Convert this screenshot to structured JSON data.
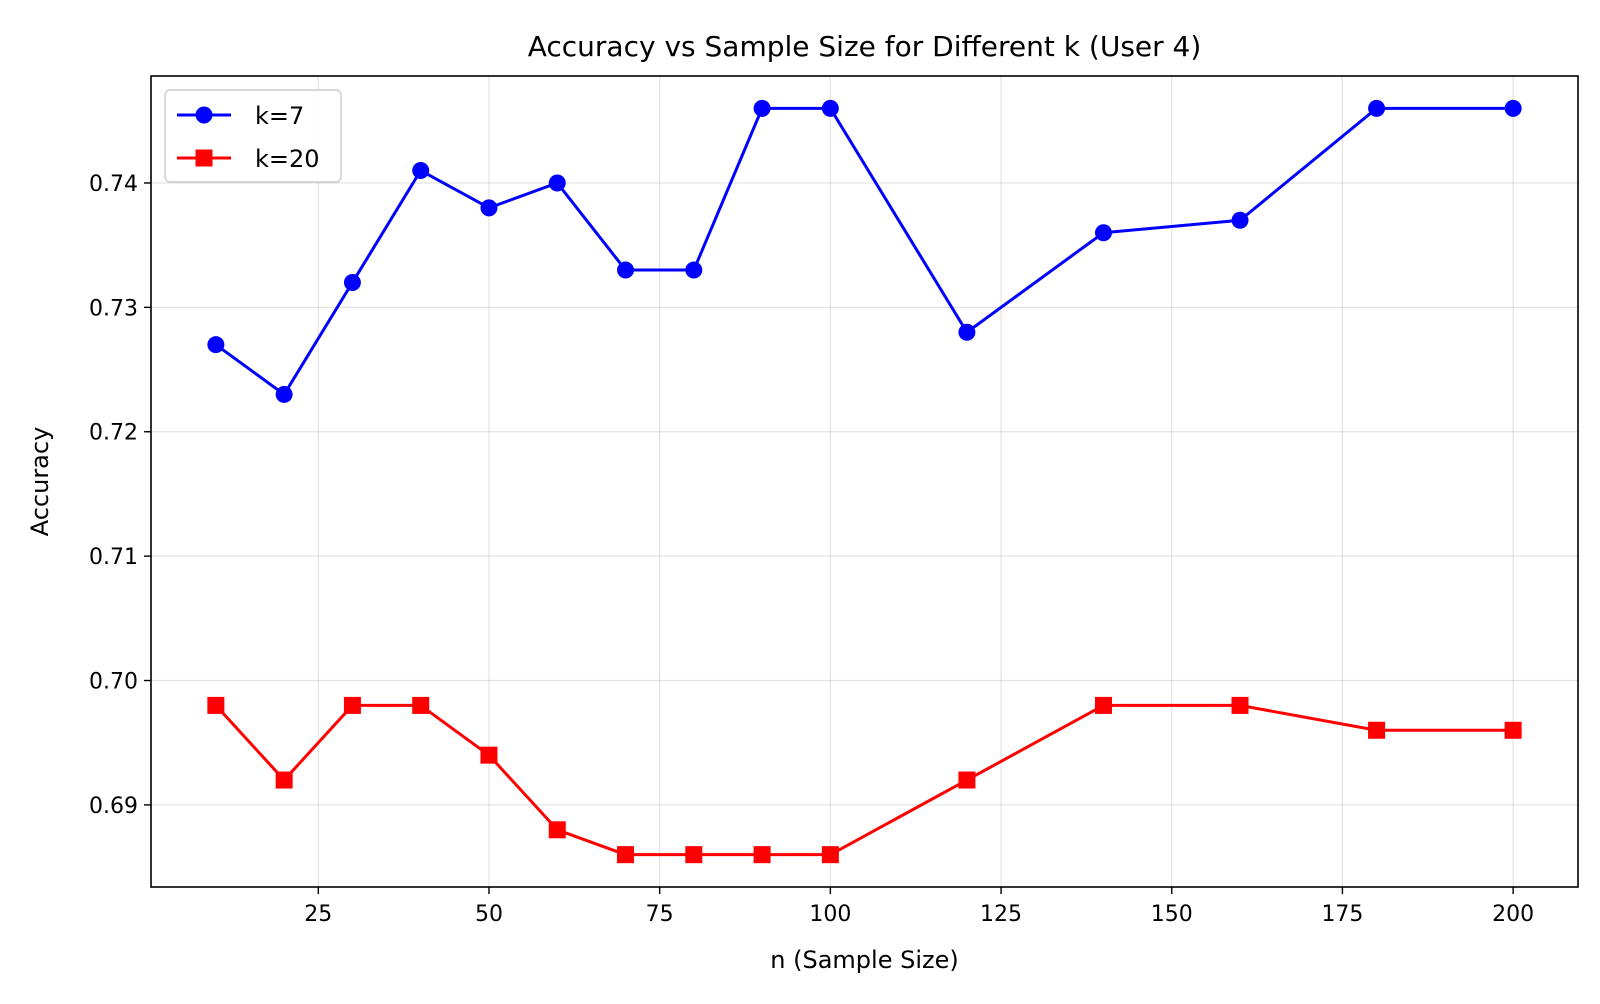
{
  "chart_data": {
    "type": "line",
    "title": "Accuracy vs Sample Size for Different k (User 4)",
    "xlabel": "n (Sample Size)",
    "ylabel": "Accuracy",
    "x": [
      10,
      20,
      30,
      40,
      50,
      60,
      70,
      80,
      90,
      100,
      120,
      140,
      160,
      180,
      200
    ],
    "xlim": [
      0.5,
      209.5
    ],
    "ylim": [
      0.6834,
      0.7486
    ],
    "xticks": [
      25,
      50,
      75,
      100,
      125,
      150,
      175,
      200
    ],
    "yticks": [
      0.69,
      0.7,
      0.71,
      0.72,
      0.73,
      0.74
    ],
    "ytick_labels": [
      "0.69",
      "0.70",
      "0.71",
      "0.72",
      "0.73",
      "0.74"
    ],
    "grid": true,
    "legend_position": "top-left",
    "series": [
      {
        "name": "k=7",
        "color": "#0000ff",
        "marker": "circle",
        "values": [
          0.727,
          0.723,
          0.732,
          0.741,
          0.738,
          0.74,
          0.733,
          0.733,
          0.746,
          0.746,
          0.728,
          0.736,
          0.737,
          0.746,
          0.746
        ]
      },
      {
        "name": "k=20",
        "color": "#ff0000",
        "marker": "square",
        "values": [
          0.698,
          0.692,
          0.698,
          0.698,
          0.694,
          0.688,
          0.686,
          0.686,
          0.686,
          0.686,
          0.692,
          0.698,
          0.698,
          0.696,
          0.696
        ]
      }
    ]
  }
}
